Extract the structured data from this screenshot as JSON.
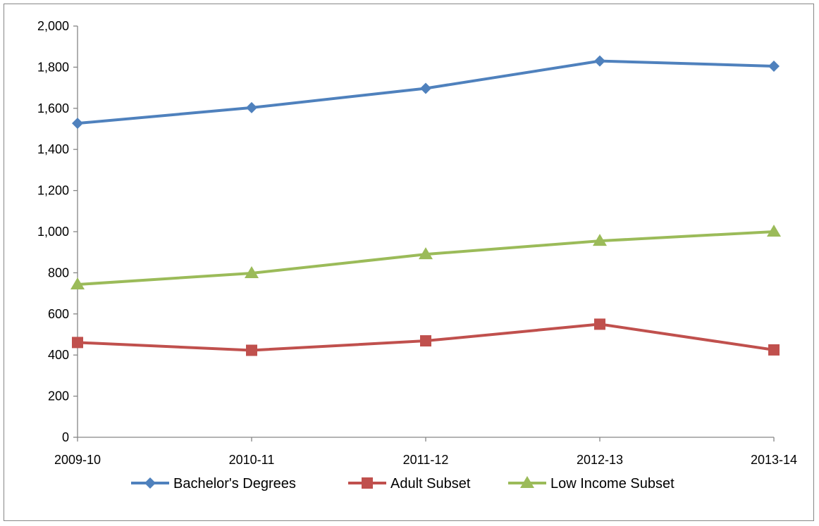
{
  "chart_data": {
    "type": "line",
    "title": "",
    "xlabel": "",
    "ylabel": "",
    "categories": [
      "2009-10",
      "2010-11",
      "2011-12",
      "2012-13",
      "2013-14"
    ],
    "ylim": [
      0,
      2000
    ],
    "yticks": [
      0,
      200,
      400,
      600,
      800,
      1000,
      1200,
      1400,
      1600,
      1800,
      2000
    ],
    "ytick_labels": [
      "0",
      "200",
      "400",
      "600",
      "800",
      "1,000",
      "1,200",
      "1,400",
      "1,600",
      "1,800",
      "2,000"
    ],
    "grid": false,
    "legend_position": "bottom",
    "series": [
      {
        "name": "Bachelor's Degrees",
        "values": [
          1527,
          1603,
          1697,
          1830,
          1805
        ],
        "color": "#4F81BD",
        "marker": "diamond"
      },
      {
        "name": "Adult Subset",
        "values": [
          461,
          423,
          469,
          550,
          425
        ],
        "color": "#C0504D",
        "marker": "square"
      },
      {
        "name": "Low Income Subset",
        "values": [
          743,
          798,
          890,
          955,
          1000
        ],
        "color": "#9BBB59",
        "marker": "triangle"
      }
    ]
  }
}
